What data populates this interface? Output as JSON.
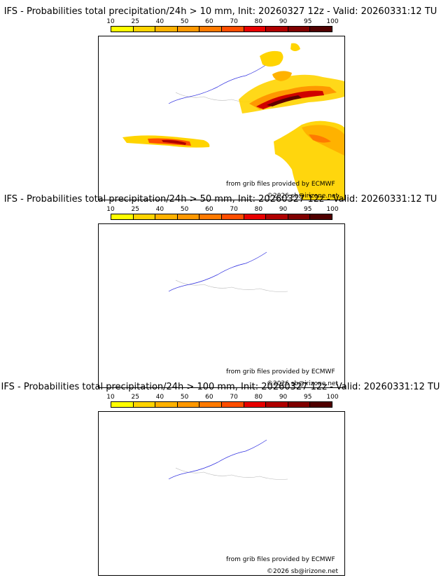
{
  "colorbar": {
    "ticks": [
      "10",
      "25",
      "40",
      "50",
      "60",
      "70",
      "80",
      "90",
      "95",
      "100"
    ],
    "colors": [
      "#ffff00",
      "#ffd400",
      "#ffb200",
      "#ff9800",
      "#ff7a00",
      "#ff4e00",
      "#e80000",
      "#b00000",
      "#800000",
      "#500000"
    ]
  },
  "panels": [
    {
      "title": "IFS - Probabilities total precipitation/24h > 10 mm, Init: 20260327 12z - Valid: 20260331:12 TU",
      "credit1": "from grib files provided by ECMWF",
      "credit2": "©2026 sb@irizone.net"
    },
    {
      "title": "IFS - Probabilities total precipitation/24h > 50 mm, Init: 20260327 12z - Valid: 20260331:12 TU",
      "credit1": "from grib files provided by ECMWF",
      "credit2": "©2026 sb@irizone.net"
    },
    {
      "title": "IFS - Probabilities total precipitation/24h > 100 mm, Init: 20260327 12z - Valid: 20260331:12 TU",
      "credit1": "from grib files provided by ECMWF",
      "credit2": "©2026 sb@irizone.net"
    }
  ]
}
